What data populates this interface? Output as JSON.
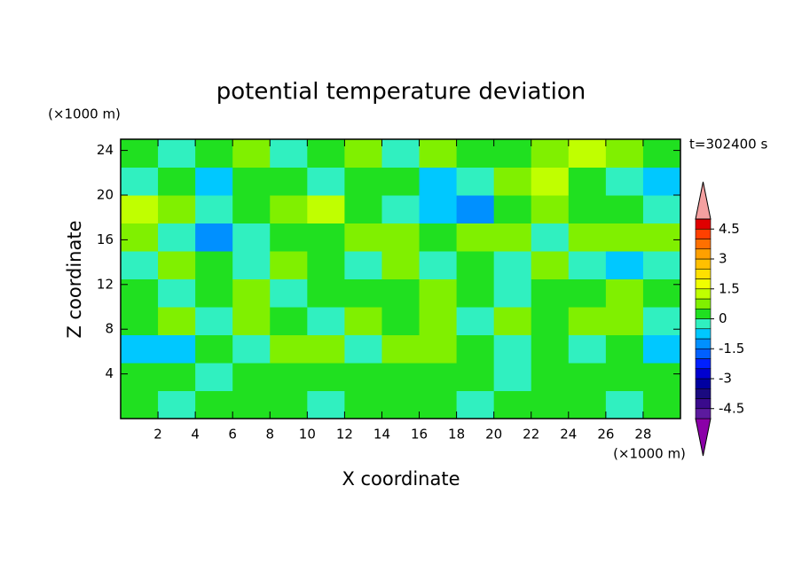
{
  "chart_data": {
    "type": "contour",
    "title": "potential temperature deviation",
    "xlabel": "X coordinate",
    "ylabel": "Z coordinate",
    "xunit": "(×1000 m)",
    "yunit": "(×1000 m)",
    "annotation": "t=302400 s",
    "xlim": [
      0,
      30
    ],
    "ylim": [
      0,
      25
    ],
    "xticks": [
      2,
      4,
      6,
      8,
      10,
      12,
      14,
      16,
      18,
      20,
      22,
      24,
      26,
      28
    ],
    "yticks": [
      4,
      8,
      12,
      16,
      20,
      24
    ],
    "levels": [
      -5,
      -4.5,
      -4,
      -3.5,
      -3,
      -2.5,
      -2,
      -1.5,
      -1,
      -0.5,
      0,
      0.5,
      1,
      1.5,
      2,
      2.5,
      3,
      3.5,
      4,
      4.5,
      5
    ],
    "colors": [
      "#8b00a8",
      "#5c1a9e",
      "#3a0a8c",
      "#1a0a80",
      "#0000a0",
      "#0000d0",
      "#0020ff",
      "#0060ff",
      "#0090ff",
      "#00c8ff",
      "#30f0c0",
      "#20e020",
      "#80f000",
      "#c0ff00",
      "#f0ff00",
      "#ffe000",
      "#ffc000",
      "#ffa000",
      "#ff7000",
      "#ff4000",
      "#e00000",
      "#f4a0a0"
    ],
    "colorbar_ticks": [
      -4.5,
      -3,
      -1.5,
      0,
      1.5,
      3,
      4.5
    ],
    "z": [
      [
        0.2,
        -0.2,
        0.2,
        0.3,
        0.2,
        -0.2,
        0.2,
        0.3,
        0.2,
        -0.2,
        0.2,
        0.3,
        0.2,
        -0.2,
        0.2
      ],
      [
        0.3,
        0.2,
        -0.3,
        0.2,
        0.3,
        0.2,
        0.4,
        0.2,
        0.3,
        0.2,
        -0.2,
        0.3,
        0.2,
        0.3,
        0.2
      ],
      [
        -0.7,
        -0.6,
        0.3,
        -0.3,
        0.6,
        0.7,
        -0.3,
        0.8,
        0.9,
        0.4,
        -0.3,
        0.3,
        -0.4,
        0.3,
        -0.6
      ],
      [
        0.4,
        0.7,
        -0.3,
        0.6,
        0.2,
        -0.3,
        0.7,
        0.3,
        0.6,
        -0.4,
        0.6,
        0.3,
        0.7,
        0.6,
        -0.3
      ],
      [
        0.3,
        -0.3,
        0.3,
        0.6,
        -0.3,
        0.3,
        0.2,
        0.3,
        0.6,
        0.3,
        -0.3,
        0.3,
        0.2,
        0.6,
        0.3
      ],
      [
        -0.4,
        0.8,
        0.3,
        -0.3,
        0.7,
        0.3,
        -0.4,
        0.6,
        -0.3,
        0.4,
        -0.3,
        0.6,
        -0.4,
        -0.6,
        -0.4
      ],
      [
        0.7,
        -0.3,
        -1.2,
        -0.4,
        0.3,
        0.3,
        0.8,
        0.6,
        0.3,
        0.7,
        0.6,
        -0.3,
        0.6,
        0.9,
        0.8
      ],
      [
        1.2,
        0.9,
        -0.4,
        0.3,
        0.8,
        1.1,
        0.4,
        -0.4,
        -0.6,
        -1.1,
        0.3,
        0.6,
        0.3,
        0.4,
        -0.4
      ],
      [
        -0.4,
        0.3,
        -0.6,
        0.2,
        0.3,
        -0.4,
        0.4,
        0.3,
        -0.6,
        -0.4,
        0.6,
        1.2,
        0.3,
        -0.3,
        -0.6
      ],
      [
        0.3,
        -0.4,
        0.3,
        0.6,
        -0.3,
        0.3,
        0.6,
        -0.4,
        0.6,
        0.3,
        0.3,
        0.7,
        1.2,
        0.6,
        0.3
      ]
    ]
  }
}
